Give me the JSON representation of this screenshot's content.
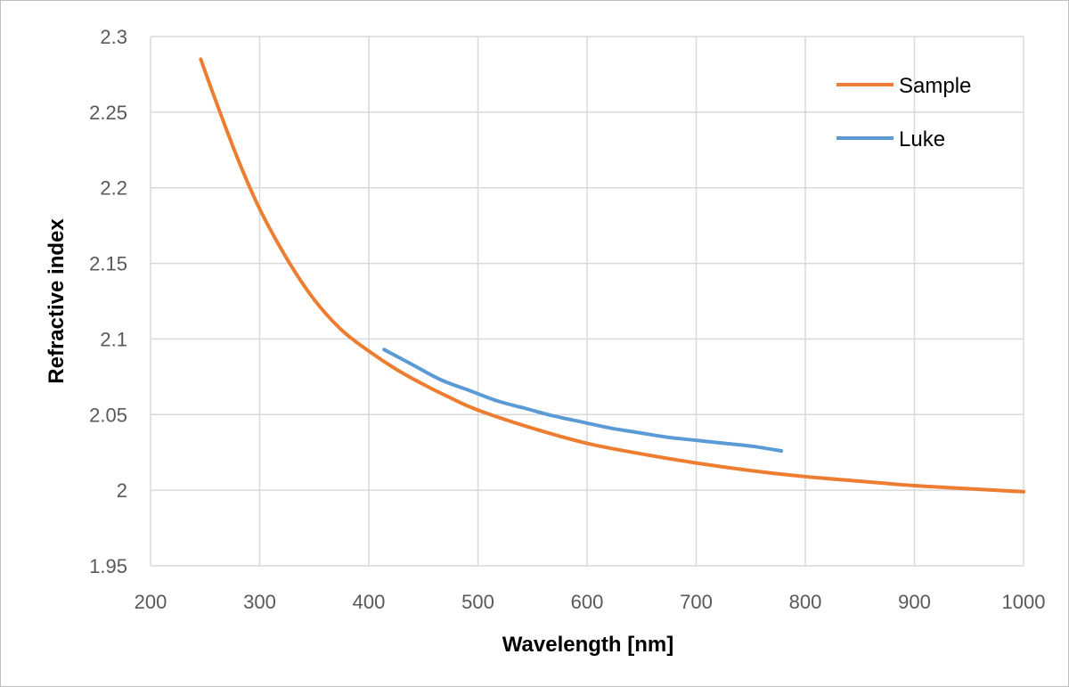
{
  "chart_data": {
    "type": "line",
    "title": "",
    "xlabel": "Wavelength [nm]",
    "ylabel": "Refractive index",
    "xlim": [
      200,
      1000
    ],
    "ylim": [
      1.95,
      2.3
    ],
    "x_ticks": [
      200,
      300,
      400,
      500,
      600,
      700,
      800,
      900,
      1000
    ],
    "y_ticks": [
      1.95,
      2.0,
      2.05,
      2.1,
      2.15,
      2.2,
      2.25,
      2.3
    ],
    "x_tick_labels": [
      "200",
      "300",
      "400",
      "500",
      "600",
      "700",
      "800",
      "900",
      "1000"
    ],
    "y_tick_labels": [
      "1.95",
      "2",
      "2.05",
      "2.1",
      "2.15",
      "2.2",
      "2.25",
      "2.3"
    ],
    "grid": true,
    "legend_position": "top-right",
    "series": [
      {
        "name": "Sample",
        "color": "#ED7D31",
        "x": [
          246,
          260,
          280,
          300,
          325,
          350,
          375,
          400,
          425,
          450,
          475,
          500,
          550,
          600,
          650,
          700,
          750,
          800,
          850,
          900,
          950,
          1000
        ],
        "y": [
          2.285,
          2.257,
          2.219,
          2.186,
          2.153,
          2.126,
          2.106,
          2.092,
          2.08,
          2.07,
          2.061,
          2.053,
          2.041,
          2.031,
          2.024,
          2.018,
          2.013,
          2.009,
          2.006,
          2.003,
          2.001,
          1.999
        ]
      },
      {
        "name": "Luke",
        "color": "#5B9BD5",
        "x": [
          414,
          440,
          466,
          492,
          518,
          544,
          570,
          596,
          622,
          648,
          674,
          700,
          726,
          752,
          778
        ],
        "y": [
          2.093,
          2.083,
          2.073,
          2.066,
          2.059,
          2.054,
          2.049,
          2.045,
          2.041,
          2.038,
          2.035,
          2.033,
          2.031,
          2.029,
          2.026
        ]
      }
    ]
  }
}
